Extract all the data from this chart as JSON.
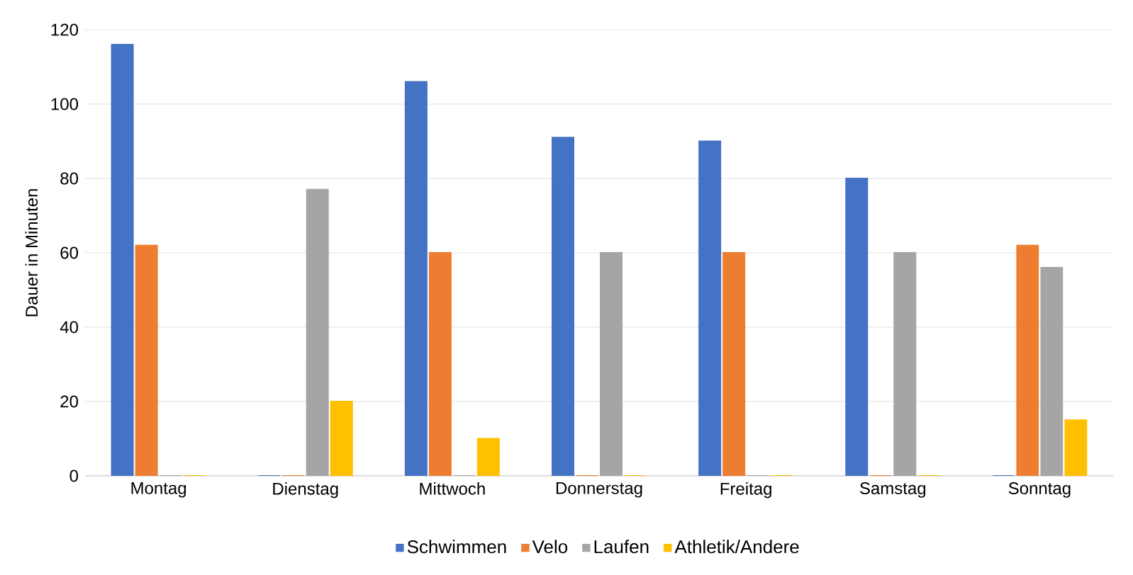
{
  "chart_data": {
    "type": "bar",
    "ylabel": "Dauer in Minuten",
    "categories": [
      "Montag",
      "Dienstag",
      "Mittwoch",
      "Donnerstag",
      "Freitag",
      "Samstag",
      "Sonntag"
    ],
    "series": [
      {
        "name": "Schwimmen",
        "color": "#4472c4",
        "values": [
          116,
          0,
          106,
          91,
          90,
          80,
          0
        ]
      },
      {
        "name": "Velo",
        "color": "#ed7d31",
        "values": [
          62,
          0,
          60,
          0,
          60,
          0,
          62
        ]
      },
      {
        "name": "Laufen",
        "color": "#a5a5a5",
        "values": [
          0,
          77,
          0,
          60,
          0,
          60,
          56
        ]
      },
      {
        "name": "Athletik/Andere",
        "color": "#ffc000",
        "values": [
          0,
          20,
          10,
          0,
          0,
          0,
          15
        ]
      }
    ],
    "ylim": [
      0,
      120
    ],
    "yticks": [
      0,
      20,
      40,
      60,
      80,
      100,
      120
    ],
    "grid": "y",
    "legend": "bottom"
  }
}
